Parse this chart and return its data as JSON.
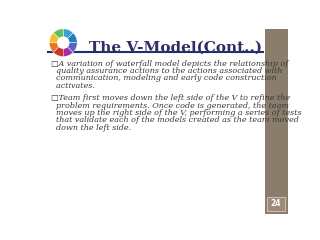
{
  "title": "The V-Model(Cont..)",
  "title_color": "#2F3061",
  "title_fontsize": 11,
  "bg_color": "#FFFFFF",
  "right_panel_color": "#8B7D6B",
  "divider_color": "#1F2D7B",
  "text_color": "#3A3A3A",
  "text_fontsize": 5.8,
  "page_number": "24",
  "page_num_color": "#FFFFFF",
  "bullet1_line1": "□A variation of waterfall model depicts the relationship of",
  "bullet1_line2": "  quality assurance actions to the actions associated with",
  "bullet1_line3": "  communication, modeling and early code construction",
  "bullet1_line4": "  activates.",
  "bullet2_line1": "□Team first moves down the left side of the V to refine the",
  "bullet2_line2": "  problem requirements. Once code is generated, the team",
  "bullet2_line3": "  moves up the right side of the V, performing a series of tests",
  "bullet2_line4": "  that validate each of the models created as the team moved",
  "bullet2_line5": "  down the left side.",
  "wheel_colors": [
    "#1F7FBF",
    "#3DA0D0",
    "#5CBF5C",
    "#F0C030",
    "#E87820",
    "#D03030",
    "#A030A0",
    "#6060C0"
  ]
}
